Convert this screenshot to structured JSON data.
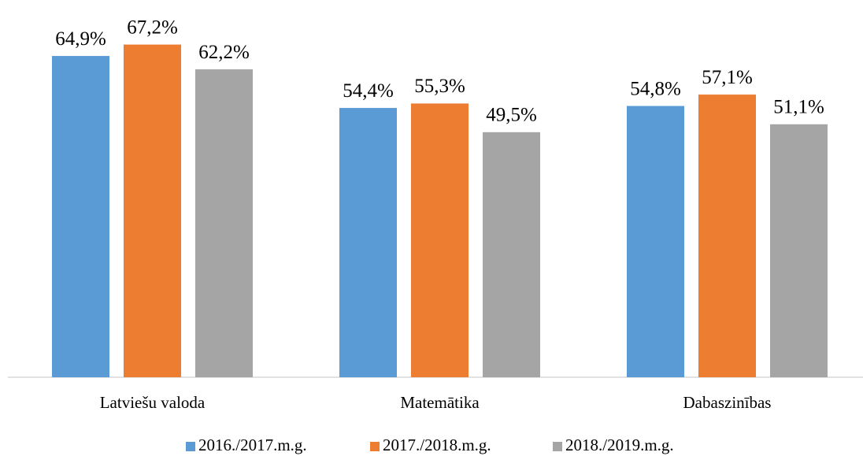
{
  "chart_data": {
    "type": "bar",
    "categories": [
      "Latviešu valoda",
      "Matemātika",
      "Dabaszinības"
    ],
    "series": [
      {
        "name": "2016./2017.m.g.",
        "color": "#5b9bd5",
        "values": [
          64.9,
          54.4,
          54.8
        ],
        "value_labels": [
          "64,9%",
          "54,4%",
          "54,8%"
        ]
      },
      {
        "name": "2017./2018.m.g.",
        "color": "#ed7d31",
        "values": [
          67.2,
          55.3,
          57.1
        ],
        "value_labels": [
          "67,2%",
          "55,3%",
          "57,1%"
        ]
      },
      {
        "name": "2018./2019.m.g.",
        "color": "#a5a5a5",
        "values": [
          62.2,
          49.5,
          51.1
        ],
        "value_labels": [
          "62,2%",
          "49,5%",
          "51,1%"
        ]
      }
    ],
    "ylim": [
      0,
      70
    ],
    "legend": "bottom"
  }
}
